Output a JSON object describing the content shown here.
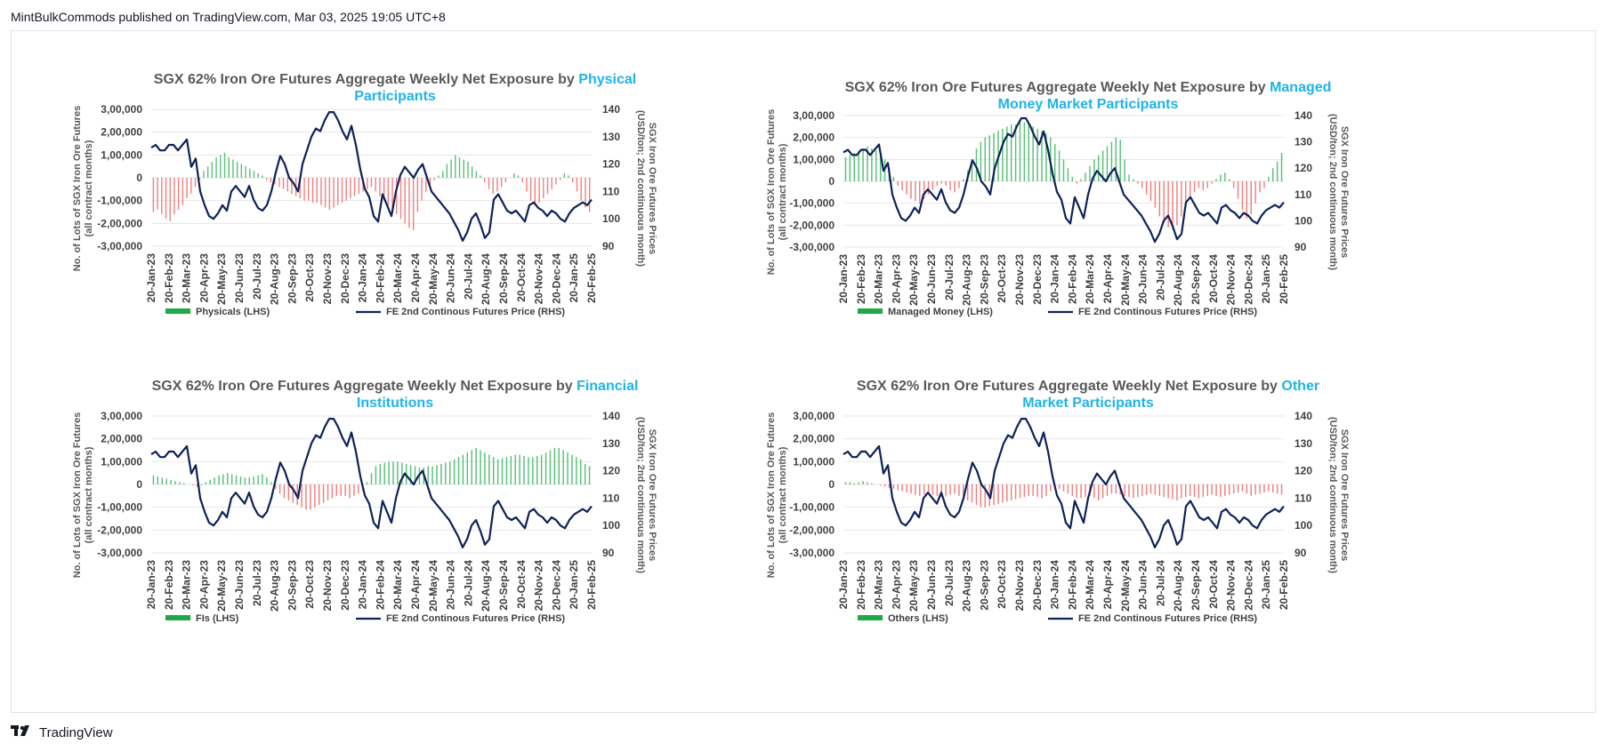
{
  "publish_line": "MintBulkCommods published on TradingView.com, Mar 03, 2025 19:05 UTC+8",
  "brand": "TradingView",
  "colors": {
    "positive_bar": "#5cc07a",
    "negative_bar": "#f08080",
    "price_line": "#0d2259",
    "legend_green": "#1fa848",
    "title_highlight": "#1fb3e8"
  },
  "chart_data": [
    {
      "type": "bar",
      "title_prefix": "SGX 62% Iron Ore Futures Aggregate Weekly Net Exposure by ",
      "title_line1_hl": "Physical",
      "title_line2": "Participants",
      "ylabel_left": [
        "No. of Lots of SGX Iron Ore Futures",
        "(all contract months)"
      ],
      "ylabel_right": [
        "SGX Iron Ore Futures Prices",
        "(USD/ton; 2nd continuous month)"
      ],
      "y_left_ticks": [
        "3,00,000",
        "2,00,000",
        "1,00,000",
        "0",
        "-1,00,000",
        "-2,00,000",
        "-3,00,000"
      ],
      "y_right_ticks": [
        "140",
        "130",
        "120",
        "110",
        "100",
        "90"
      ],
      "x_ticks": [
        "20-Jan-23",
        "20-Feb-23",
        "20-Mar-23",
        "20-Apr-23",
        "20-May-23",
        "20-Jun-23",
        "20-Jul-23",
        "20-Aug-23",
        "20-Sep-23",
        "20-Oct-23",
        "20-Nov-23",
        "20-Dec-23",
        "20-Jan-24",
        "20-Feb-24",
        "20-Mar-24",
        "20-Apr-24",
        "20-May-24",
        "20-Jun-24",
        "20-Jul-24",
        "20-Aug-24",
        "20-Sep-24",
        "20-Oct-24",
        "20-Nov-24",
        "20-Dec-24",
        "20-Jan-25",
        "20-Feb-25"
      ],
      "ylim_left": [
        -300000,
        300000
      ],
      "ylim_right": [
        90,
        140
      ],
      "legend_bar": "Physicals (LHS)",
      "legend_line": "FE 2nd Continous Futures Price (RHS)",
      "bar_values": [
        -150000,
        -140000,
        -160000,
        -180000,
        -190000,
        -160000,
        -140000,
        -120000,
        -90000,
        -70000,
        -40000,
        -10000,
        30000,
        50000,
        70000,
        90000,
        100000,
        110000,
        90000,
        80000,
        70000,
        60000,
        50000,
        40000,
        30000,
        20000,
        10000,
        -10000,
        -20000,
        -30000,
        -40000,
        -50000,
        -60000,
        -70000,
        -80000,
        -90000,
        -100000,
        -100000,
        -110000,
        -110000,
        -120000,
        -130000,
        -140000,
        -130000,
        -120000,
        -110000,
        -100000,
        -90000,
        -80000,
        -70000,
        -60000,
        -50000,
        -40000,
        -60000,
        -80000,
        -100000,
        -120000,
        -140000,
        -160000,
        -180000,
        -200000,
        -220000,
        -230000,
        -150000,
        -100000,
        -60000,
        -30000,
        -10000,
        10000,
        30000,
        60000,
        80000,
        100000,
        90000,
        80000,
        70000,
        50000,
        30000,
        10000,
        -20000,
        -50000,
        -70000,
        -60000,
        -40000,
        -20000,
        0,
        20000,
        10000,
        -20000,
        -60000,
        -100000,
        -120000,
        -110000,
        -90000,
        -70000,
        -50000,
        -30000,
        -10000,
        20000,
        10000,
        -20000,
        -60000,
        -100000,
        -130000,
        -150000
      ],
      "price_values": [
        126,
        127,
        125,
        125,
        127,
        127,
        125,
        127,
        129,
        119,
        122,
        110,
        105,
        101,
        100,
        102,
        105,
        103,
        110,
        112,
        110,
        108,
        112,
        107,
        104,
        103,
        105,
        110,
        117,
        123,
        120,
        115,
        113,
        110,
        120,
        125,
        130,
        133,
        132,
        136,
        139,
        139,
        136,
        132,
        129,
        134,
        127,
        118,
        111,
        108,
        101,
        99,
        109,
        105,
        101,
        110,
        116,
        119,
        117,
        115,
        118,
        120,
        115,
        110,
        108,
        106,
        104,
        102,
        99,
        96,
        92,
        95,
        100,
        102,
        98,
        93,
        95,
        107,
        109,
        106,
        103,
        102,
        103,
        101,
        99,
        105,
        106,
        104,
        103,
        101,
        103,
        102,
        100,
        99,
        102,
        104,
        105,
        106,
        105,
        107
      ]
    },
    {
      "type": "bar",
      "title_prefix": "SGX 62% Iron Ore Futures Aggregate Weekly Net Exposure by ",
      "title_line1_hl": "Managed",
      "title_line2": "Money Market Participants",
      "ylabel_left": [
        "No. of Lots of SGX Iron Ore Futures",
        "(all contract months)"
      ],
      "ylabel_right": [
        "SGX Iron Ore Futures Prices",
        "(USD/ton; 2nd continuous month)"
      ],
      "y_left_ticks": [
        "3,00,000",
        "2,00,000",
        "1,00,000",
        "0",
        "-1,00,000",
        "-2,00,000",
        "-3,00,000"
      ],
      "y_right_ticks": [
        "140",
        "130",
        "120",
        "110",
        "100",
        "90"
      ],
      "x_ticks": [
        "20-Jan-23",
        "20-Feb-23",
        "20-Mar-23",
        "20-Apr-23",
        "20-May-23",
        "20-Jun-23",
        "20-Jul-23",
        "20-Aug-23",
        "20-Sep-23",
        "20-Oct-23",
        "20-Nov-23",
        "20-Dec-23",
        "20-Jan-24",
        "20-Feb-24",
        "20-Mar-24",
        "20-Apr-24",
        "20-May-24",
        "20-Jun-24",
        "20-Jul-24",
        "20-Aug-24",
        "20-Sep-24",
        "20-Oct-24",
        "20-Nov-24",
        "20-Dec-24",
        "20-Jan-25",
        "20-Feb-25"
      ],
      "ylim_left": [
        -300000,
        300000
      ],
      "ylim_right": [
        90,
        140
      ],
      "legend_bar": "Managed Money (LHS)",
      "legend_line": "FE 2nd Continous Futures Price (RHS)",
      "bar_values": [
        110000,
        120000,
        130000,
        140000,
        150000,
        160000,
        150000,
        140000,
        130000,
        100000,
        60000,
        20000,
        -20000,
        -40000,
        -60000,
        -80000,
        -90000,
        -100000,
        -80000,
        -60000,
        -40000,
        -20000,
        -10000,
        -20000,
        -40000,
        -50000,
        -30000,
        10000,
        50000,
        100000,
        150000,
        180000,
        200000,
        210000,
        220000,
        230000,
        240000,
        250000,
        260000,
        260000,
        270000,
        270000,
        260000,
        250000,
        240000,
        230000,
        220000,
        200000,
        170000,
        140000,
        100000,
        60000,
        20000,
        -10000,
        10000,
        40000,
        70000,
        100000,
        120000,
        140000,
        160000,
        180000,
        200000,
        190000,
        100000,
        30000,
        10000,
        -10000,
        -30000,
        -60000,
        -90000,
        -120000,
        -160000,
        -190000,
        -210000,
        -220000,
        -200000,
        -160000,
        -120000,
        -80000,
        -50000,
        -30000,
        -40000,
        -30000,
        -10000,
        10000,
        30000,
        40000,
        10000,
        -30000,
        -80000,
        -130000,
        -170000,
        -150000,
        -100000,
        -50000,
        -30000,
        20000,
        60000,
        90000,
        130000
      ],
      "price_values": [
        126,
        127,
        125,
        125,
        127,
        127,
        125,
        127,
        129,
        119,
        122,
        110,
        105,
        101,
        100,
        102,
        105,
        103,
        110,
        112,
        110,
        108,
        112,
        107,
        104,
        103,
        105,
        110,
        117,
        123,
        120,
        115,
        113,
        110,
        120,
        125,
        130,
        133,
        132,
        136,
        139,
        139,
        136,
        132,
        129,
        134,
        127,
        118,
        111,
        108,
        101,
        99,
        109,
        105,
        101,
        110,
        116,
        119,
        117,
        115,
        118,
        120,
        115,
        110,
        108,
        106,
        104,
        102,
        99,
        96,
        92,
        95,
        100,
        102,
        98,
        93,
        95,
        107,
        109,
        106,
        103,
        102,
        103,
        101,
        99,
        105,
        106,
        104,
        103,
        101,
        103,
        102,
        100,
        99,
        102,
        104,
        105,
        106,
        105,
        107
      ]
    },
    {
      "type": "bar",
      "title_prefix": "SGX 62% Iron Ore Futures Aggregate Weekly Net Exposure by ",
      "title_line1_hl": "Financial",
      "title_line2": "Institutions",
      "ylabel_left": [
        "No. of Lots of SGX Iron Ore Futures",
        "(all contract months)"
      ],
      "ylabel_right": [
        "SGX Iron Ore Futures Prices",
        "(USD/ton; 2nd continuous month)"
      ],
      "y_left_ticks": [
        "3,00,000",
        "2,00,000",
        "1,00,000",
        "0",
        "-1,00,000",
        "-2,00,000",
        "-3,00,000"
      ],
      "y_right_ticks": [
        "140",
        "130",
        "120",
        "110",
        "100",
        "90"
      ],
      "x_ticks": [
        "20-Jan-23",
        "20-Feb-23",
        "20-Mar-23",
        "20-Apr-23",
        "20-May-23",
        "20-Jun-23",
        "20-Jul-23",
        "20-Aug-23",
        "20-Sep-23",
        "20-Oct-23",
        "20-Nov-23",
        "20-Dec-23",
        "20-Jan-24",
        "20-Feb-24",
        "20-Mar-24",
        "20-Apr-24",
        "20-May-24",
        "20-Jun-24",
        "20-Jul-24",
        "20-Aug-24",
        "20-Sep-24",
        "20-Oct-24",
        "20-Nov-24",
        "20-Dec-24",
        "20-Jan-25",
        "20-Feb-25"
      ],
      "ylim_left": [
        -300000,
        300000
      ],
      "ylim_right": [
        90,
        140
      ],
      "legend_bar": "FIs (LHS)",
      "legend_line": "FE 2nd Continous Futures Price (RHS)",
      "bar_values": [
        40000,
        35000,
        30000,
        25000,
        20000,
        15000,
        10000,
        5000,
        0,
        -5000,
        -10000,
        -5000,
        10000,
        20000,
        30000,
        40000,
        45000,
        50000,
        45000,
        40000,
        35000,
        30000,
        30000,
        35000,
        40000,
        45000,
        30000,
        10000,
        -20000,
        -40000,
        -60000,
        -70000,
        -80000,
        -90000,
        -100000,
        -110000,
        -110000,
        -100000,
        -90000,
        -80000,
        -70000,
        -60000,
        -50000,
        -50000,
        -50000,
        -60000,
        -50000,
        -40000,
        -30000,
        10000,
        50000,
        80000,
        90000,
        95000,
        100000,
        100000,
        100000,
        95000,
        90000,
        85000,
        80000,
        75000,
        75000,
        80000,
        80000,
        85000,
        90000,
        95000,
        100000,
        110000,
        120000,
        130000,
        140000,
        150000,
        160000,
        150000,
        140000,
        130000,
        120000,
        110000,
        115000,
        120000,
        125000,
        130000,
        130000,
        125000,
        120000,
        120000,
        125000,
        130000,
        140000,
        150000,
        160000,
        160000,
        150000,
        140000,
        130000,
        120000,
        110000,
        90000,
        80000
      ],
      "price_values": [
        126,
        127,
        125,
        125,
        127,
        127,
        125,
        127,
        129,
        119,
        122,
        110,
        105,
        101,
        100,
        102,
        105,
        103,
        110,
        112,
        110,
        108,
        112,
        107,
        104,
        103,
        105,
        110,
        117,
        123,
        120,
        115,
        113,
        110,
        120,
        125,
        130,
        133,
        132,
        136,
        139,
        139,
        136,
        132,
        129,
        134,
        127,
        118,
        111,
        108,
        101,
        99,
        109,
        105,
        101,
        110,
        116,
        119,
        117,
        115,
        118,
        120,
        115,
        110,
        108,
        106,
        104,
        102,
        99,
        96,
        92,
        95,
        100,
        102,
        98,
        93,
        95,
        107,
        109,
        106,
        103,
        102,
        103,
        101,
        99,
        105,
        106,
        104,
        103,
        101,
        103,
        102,
        100,
        99,
        102,
        104,
        105,
        106,
        105,
        107
      ]
    },
    {
      "type": "bar",
      "title_prefix": "SGX 62% Iron Ore Futures Aggregate Weekly Net Exposure by ",
      "title_line1_hl": "Other",
      "title_line2": "Market Participants",
      "ylabel_left": [
        "No. of Lots of SGX Iron Ore Futures",
        "(all contract months)"
      ],
      "ylabel_right": [
        "SGX Iron Ore Futures Prices",
        "(USD/ton; 2nd continuous month)"
      ],
      "y_left_ticks": [
        "3,00,000",
        "2,00,000",
        "1,00,000",
        "0",
        "-1,00,000",
        "-2,00,000",
        "-3,00,000"
      ],
      "y_right_ticks": [
        "140",
        "130",
        "120",
        "110",
        "100",
        "90"
      ],
      "x_ticks": [
        "20-Jan-23",
        "20-Feb-23",
        "20-Mar-23",
        "20-Apr-23",
        "20-May-23",
        "20-Jun-23",
        "20-Jul-23",
        "20-Aug-23",
        "20-Sep-23",
        "20-Oct-23",
        "20-Nov-23",
        "20-Dec-23",
        "20-Jan-24",
        "20-Feb-24",
        "20-Mar-24",
        "20-Apr-24",
        "20-May-24",
        "20-Jun-24",
        "20-Jul-24",
        "20-Aug-24",
        "20-Sep-24",
        "20-Oct-24",
        "20-Nov-24",
        "20-Dec-24",
        "20-Jan-25",
        "20-Feb-25"
      ],
      "ylim_left": [
        -300000,
        300000
      ],
      "ylim_right": [
        90,
        140
      ],
      "legend_bar": "Others (LHS)",
      "legend_line": "FE 2nd Continous Futures Price (RHS)",
      "bar_values": [
        10000,
        10000,
        5000,
        10000,
        15000,
        10000,
        5000,
        0,
        -5000,
        -10000,
        -15000,
        -20000,
        -25000,
        -30000,
        -35000,
        -40000,
        -45000,
        -50000,
        -45000,
        -40000,
        -45000,
        -50000,
        -55000,
        -50000,
        -45000,
        -40000,
        -50000,
        -60000,
        -70000,
        -80000,
        -90000,
        -100000,
        -100000,
        -95000,
        -90000,
        -85000,
        -80000,
        -75000,
        -70000,
        -65000,
        -60000,
        -55000,
        -50000,
        -50000,
        -55000,
        -60000,
        -50000,
        -30000,
        -10000,
        -20000,
        -30000,
        -40000,
        -50000,
        -60000,
        -60000,
        -55000,
        -50000,
        -60000,
        -70000,
        -60000,
        -50000,
        -40000,
        -40000,
        -45000,
        -50000,
        -55000,
        -60000,
        -55000,
        -50000,
        -45000,
        -40000,
        -45000,
        -50000,
        -55000,
        -60000,
        -65000,
        -70000,
        -60000,
        -55000,
        -50000,
        -55000,
        -60000,
        -55000,
        -50000,
        -45000,
        -50000,
        -55000,
        -50000,
        -45000,
        -40000,
        -35000,
        -30000,
        -40000,
        -50000,
        -45000,
        -40000,
        -35000,
        -30000,
        -35000,
        -40000,
        -45000
      ],
      "price_values": [
        126,
        127,
        125,
        125,
        127,
        127,
        125,
        127,
        129,
        119,
        122,
        110,
        105,
        101,
        100,
        102,
        105,
        103,
        110,
        112,
        110,
        108,
        112,
        107,
        104,
        103,
        105,
        110,
        117,
        123,
        120,
        115,
        113,
        110,
        120,
        125,
        130,
        133,
        132,
        136,
        139,
        139,
        136,
        132,
        129,
        134,
        127,
        118,
        111,
        108,
        101,
        99,
        109,
        105,
        101,
        110,
        116,
        119,
        117,
        115,
        118,
        120,
        115,
        110,
        108,
        106,
        104,
        102,
        99,
        96,
        92,
        95,
        100,
        102,
        98,
        93,
        95,
        107,
        109,
        106,
        103,
        102,
        103,
        101,
        99,
        105,
        106,
        104,
        103,
        101,
        103,
        102,
        100,
        99,
        102,
        104,
        105,
        106,
        105,
        107
      ]
    }
  ]
}
